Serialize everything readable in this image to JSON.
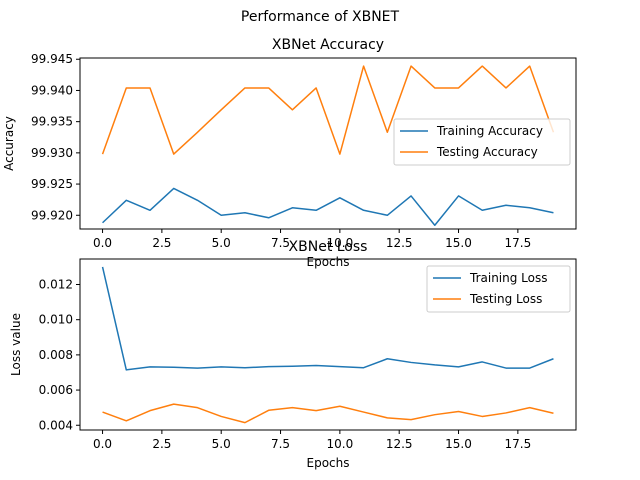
{
  "suptitle": "Performance of XBNET",
  "chart_data": [
    {
      "type": "line",
      "title": "XBNet Accuracy",
      "xlabel": "Epochs",
      "ylabel": "Accuracy",
      "x": [
        0,
        1,
        2,
        3,
        4,
        5,
        6,
        7,
        8,
        9,
        10,
        11,
        12,
        13,
        14,
        15,
        16,
        17,
        18,
        19
      ],
      "xticks": [
        0.0,
        2.5,
        5.0,
        7.5,
        10.0,
        12.5,
        15.0,
        17.5
      ],
      "xtick_labels": [
        "0.0",
        "2.5",
        "5.0",
        "7.5",
        "10.0",
        "12.5",
        "15.0",
        "17.5"
      ],
      "yticks": [
        99.92,
        99.925,
        99.93,
        99.935,
        99.94,
        99.945
      ],
      "ytick_labels": [
        "99.920",
        "99.925",
        "99.930",
        "99.935",
        "99.940",
        "99.945"
      ],
      "xlim": [
        -0.95,
        19.95
      ],
      "ylim": [
        99.9178,
        99.9452
      ],
      "legend_loc": "center-right",
      "series": [
        {
          "name": "Training Accuracy",
          "color": "#1f77b4",
          "values": [
            99.9188,
            99.9224,
            99.9208,
            99.9243,
            99.9224,
            99.92,
            99.9204,
            99.9196,
            99.9212,
            99.9208,
            99.9228,
            99.9208,
            99.92,
            99.9231,
            99.9184,
            99.9231,
            99.9208,
            99.9216,
            99.9212,
            99.9204
          ]
        },
        {
          "name": "Testing Accuracy",
          "color": "#ff7f0e",
          "values": [
            99.9298,
            99.9404,
            99.9404,
            99.9298,
            99.9333,
            99.9369,
            99.9404,
            99.9404,
            99.9369,
            99.9404,
            99.9298,
            99.9439,
            99.9333,
            99.9439,
            99.9404,
            99.9404,
            99.9439,
            99.9404,
            99.9439,
            99.9333
          ]
        }
      ]
    },
    {
      "type": "line",
      "title": "XBNet Loss",
      "xlabel": "Epochs",
      "ylabel": "Loss value",
      "x": [
        0,
        1,
        2,
        3,
        4,
        5,
        6,
        7,
        8,
        9,
        10,
        11,
        12,
        13,
        14,
        15,
        16,
        17,
        18,
        19
      ],
      "xticks": [
        0.0,
        2.5,
        5.0,
        7.5,
        10.0,
        12.5,
        15.0,
        17.5
      ],
      "xtick_labels": [
        "0.0",
        "2.5",
        "5.0",
        "7.5",
        "10.0",
        "12.5",
        "15.0",
        "17.5"
      ],
      "yticks": [
        0.004,
        0.006,
        0.008,
        0.01,
        0.012
      ],
      "ytick_labels": [
        "0.004",
        "0.006",
        "0.008",
        "0.010",
        "0.012"
      ],
      "xlim": [
        -0.95,
        19.95
      ],
      "ylim": [
        0.00373,
        0.01345
      ],
      "legend_loc": "top-right",
      "series": [
        {
          "name": "Training Loss",
          "color": "#1f77b4",
          "values": [
            0.013,
            0.00715,
            0.00732,
            0.0073,
            0.00725,
            0.00732,
            0.00727,
            0.00733,
            0.00735,
            0.0074,
            0.00733,
            0.00727,
            0.00778,
            0.00757,
            0.00743,
            0.00732,
            0.0076,
            0.00725,
            0.00725,
            0.00778
          ]
        },
        {
          "name": "Testing Loss",
          "color": "#ff7f0e",
          "values": [
            0.00475,
            0.00425,
            0.00483,
            0.0052,
            0.005,
            0.0045,
            0.00415,
            0.00485,
            0.005,
            0.00483,
            0.00508,
            0.00475,
            0.00442,
            0.00432,
            0.0046,
            0.00478,
            0.0045,
            0.0047,
            0.005,
            0.00468
          ]
        }
      ]
    }
  ]
}
